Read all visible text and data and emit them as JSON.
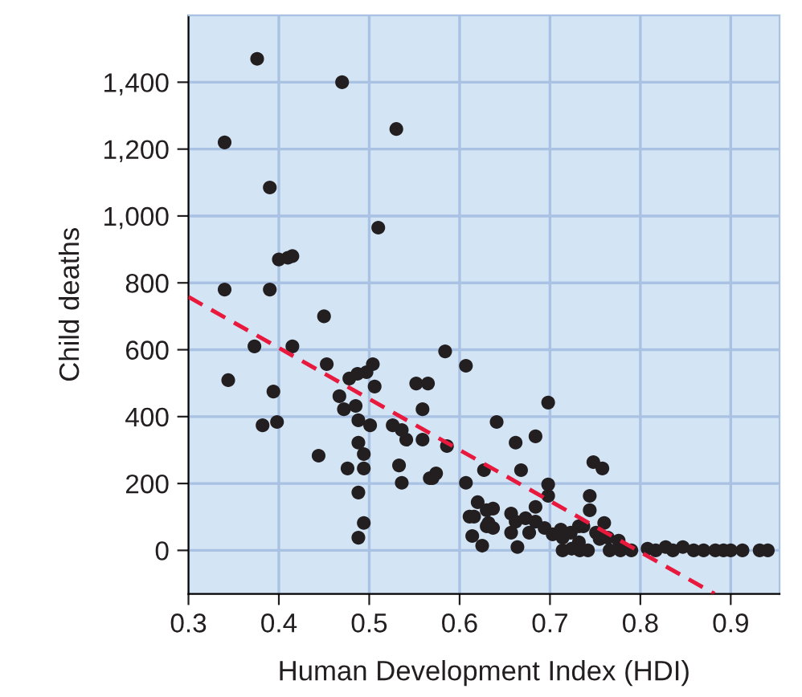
{
  "chart_data": {
    "type": "scatter",
    "xlabel": "Human Development Index (HDI)",
    "ylabel": "Child deaths",
    "xlim": [
      0.3,
      0.954
    ],
    "ylim": [
      -130,
      1600
    ],
    "xticks": [
      0.3,
      0.4,
      0.5,
      0.6,
      0.7,
      0.8,
      0.9
    ],
    "yticks": [
      0,
      200,
      400,
      600,
      800,
      {
        "value": 1000,
        "label": "1,000"
      },
      {
        "value": 1200,
        "label": "1,200"
      },
      {
        "value": 1400,
        "label": "1,400"
      }
    ],
    "grid": true,
    "marker": "circle",
    "legend": false,
    "series": [
      {
        "color": "#231f20",
        "x": [
          0.376,
          0.34,
          0.47,
          0.53,
          0.39,
          0.51,
          0.4,
          0.41,
          0.415,
          0.34,
          0.39,
          0.45,
          0.373,
          0.415,
          0.453,
          0.344,
          0.394,
          0.382,
          0.398,
          0.444,
          0.478,
          0.487,
          0.497,
          0.504,
          0.506,
          0.467,
          0.472,
          0.485,
          0.488,
          0.501,
          0.488,
          0.494,
          0.476,
          0.494,
          0.488,
          0.494,
          0.488,
          0.526,
          0.536,
          0.541,
          0.533,
          0.536,
          0.552,
          0.565,
          0.559,
          0.559,
          0.586,
          0.567,
          0.574,
          0.57,
          0.584,
          0.607,
          0.627,
          0.607,
          0.62,
          0.611,
          0.616,
          0.63,
          0.63,
          0.614,
          0.625,
          0.698,
          0.641,
          0.662,
          0.684,
          0.668,
          0.698,
          0.698,
          0.748,
          0.758,
          0.744,
          0.744,
          0.76,
          0.637,
          0.632,
          0.637,
          0.657,
          0.662,
          0.673,
          0.684,
          0.684,
          0.657,
          0.677,
          0.664,
          0.694,
          0.703,
          0.712,
          0.714,
          0.714,
          0.723,
          0.732,
          0.737,
          0.732,
          0.733,
          0.724,
          0.742,
          0.751,
          0.755,
          0.764,
          0.766,
          0.776,
          0.778,
          0.79,
          0.808,
          0.817,
          0.828,
          0.836,
          0.847,
          0.859,
          0.87,
          0.883,
          0.892,
          0.9,
          0.913,
          0.932,
          0.941
        ],
        "values": [
          1470,
          1220,
          1400,
          1260,
          1085,
          965,
          870,
          875,
          880,
          780,
          780,
          700,
          610,
          610,
          557,
          509,
          475,
          374,
          384,
          283,
          514,
          528,
          533,
          557,
          490,
          461,
          422,
          432,
          389,
          374,
          322,
          288,
          245,
          245,
          173,
          82,
          38,
          374,
          360,
          331,
          254,
          202,
          499,
          499,
          422,
          331,
          312,
          216,
          230,
          216,
          595,
          552,
          240,
          202,
          144,
          101,
          101,
          120,
          72,
          43,
          14,
          442,
          384,
          322,
          341,
          240,
          197,
          163,
          264,
          245,
          163,
          120,
          82,
          125,
          82,
          67,
          110,
          86,
          96,
          86,
          130,
          53,
          53,
          10,
          67,
          48,
          62,
          38,
          0,
          53,
          72,
          72,
          24,
          0,
          5,
          0,
          53,
          34,
          38,
          0,
          29,
          0,
          0,
          5,
          0,
          10,
          0,
          10,
          0,
          0,
          0,
          0,
          0,
          0,
          0,
          0
        ]
      },
      {
        "type": "line",
        "color": "#e8193c",
        "line_style": "dashed",
        "marker": "none",
        "x": [
          0.3,
          0.882
        ],
        "values": [
          758,
          -130
        ]
      }
    ]
  }
}
